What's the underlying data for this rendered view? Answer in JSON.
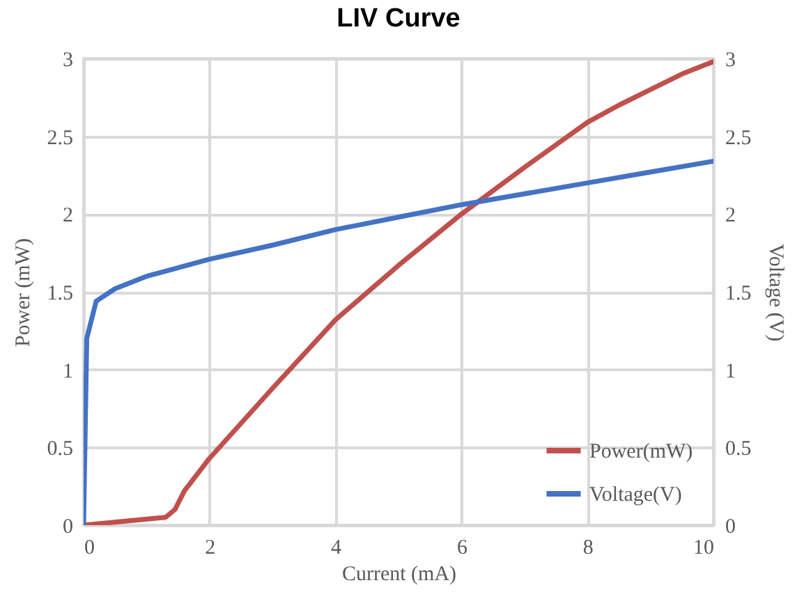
{
  "chart_data": {
    "type": "line",
    "title": "LIV Curve",
    "xlabel": "Current (mA)",
    "ylabel": "Power (mW)",
    "y2label": "Voltage (V)",
    "xlim": [
      0,
      10
    ],
    "xticks": [
      0,
      2,
      4,
      6,
      8,
      10
    ],
    "ylim": [
      0,
      3
    ],
    "yticks": [
      0,
      0.5,
      1,
      1.5,
      2,
      2.5,
      3
    ],
    "y2lim": [
      0,
      3
    ],
    "y2ticks": [
      0,
      0.5,
      1,
      1.5,
      2,
      2.5,
      3
    ],
    "grid": true,
    "legend": "bottom right",
    "series": [
      {
        "name": "Power(mW)",
        "color": "#c0504d",
        "x": [
          0,
          1.3,
          1.45,
          1.6,
          2,
          3,
          4,
          5,
          6,
          7,
          8,
          8.5,
          9,
          9.5,
          10
        ],
        "values": [
          0,
          0.05,
          0.1,
          0.22,
          0.43,
          0.88,
          1.32,
          1.67,
          2.0,
          2.3,
          2.59,
          2.7,
          2.8,
          2.9,
          2.98
        ]
      },
      {
        "name": "Voltage(V)",
        "color": "#4472c4",
        "axis": "y2",
        "x": [
          0,
          0.05,
          0.2,
          0.5,
          1,
          2,
          3,
          4,
          5,
          6,
          7,
          8,
          9,
          10
        ],
        "values": [
          0,
          1.2,
          1.44,
          1.52,
          1.6,
          1.71,
          1.8,
          1.9,
          1.98,
          2.06,
          2.13,
          2.2,
          2.27,
          2.34
        ]
      }
    ]
  }
}
